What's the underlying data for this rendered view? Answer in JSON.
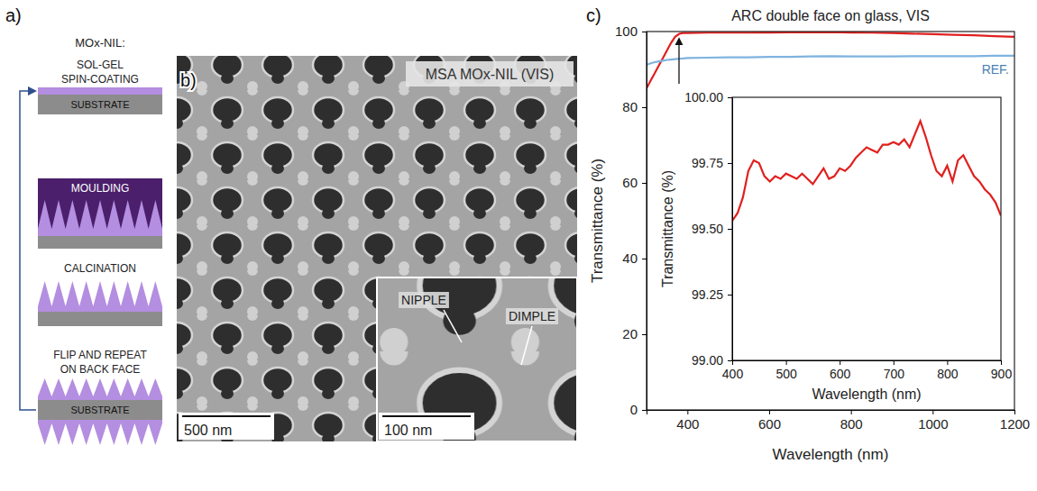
{
  "diagram": {
    "letter": "a)",
    "title": "MOx-NIL:",
    "steps": [
      {
        "lines": [
          "SOL-GEL",
          "SPIN-COATING"
        ],
        "substrate": "SUBSTRATE"
      },
      {
        "lines": [
          "MOULDING"
        ]
      },
      {
        "lines": [
          "CALCINATION"
        ]
      },
      {
        "lines": [
          "FLIP AND REPEAT",
          "ON BACK FACE"
        ],
        "substrate": "SUBSTRATE"
      }
    ]
  },
  "image": {
    "letter": "b)",
    "caption": "MSA MOx-NIL (VIS)",
    "scale_bar": "500 nm",
    "inset": {
      "scale_bar": "100 nm",
      "labels": [
        "NIPPLE",
        "DIMPLE"
      ]
    }
  },
  "chart_data": [
    {
      "type": "line",
      "panel_label": "c)",
      "title": "ARC double face on glass, VIS",
      "x_label": "Wavelength (nm)",
      "y_label": "Transmittance (%)",
      "x": [
        300,
        310,
        320,
        330,
        340,
        350,
        360,
        370,
        380,
        390,
        400,
        450,
        500,
        550,
        600,
        650,
        700,
        750,
        800,
        850,
        900,
        950,
        1000,
        1050,
        1100,
        1150,
        1200
      ],
      "series": [
        {
          "color": "#e0201e",
          "values": [
            85,
            87,
            89,
            91,
            93,
            95,
            97,
            98.6,
            99.4,
            99.6,
            99.6,
            99.7,
            99.7,
            99.7,
            99.75,
            99.8,
            99.8,
            99.85,
            99.75,
            99.7,
            99.6,
            99.45,
            99.3,
            99.15,
            99.0,
            98.8,
            98.6
          ]
        },
        {
          "name": "REF.",
          "color": "#7fb3e0",
          "values": [
            91.2,
            91.6,
            91.9,
            92.1,
            92.3,
            92.5,
            92.6,
            92.7,
            92.8,
            92.9,
            93.0,
            93.1,
            93.2,
            93.2,
            93.3,
            93.3,
            93.4,
            93.5,
            93.4,
            93.4,
            93.4,
            93.5,
            93.5,
            93.5,
            93.5,
            93.6,
            93.6
          ]
        }
      ],
      "xlim": [
        300,
        1200
      ],
      "xticks": [
        400,
        600,
        800,
        1000,
        1200
      ],
      "ylim": [
        0,
        100
      ],
      "yticks": [
        0,
        20,
        40,
        60,
        80,
        100
      ]
    },
    {
      "type": "line",
      "x_label": "Wavelength (nm)",
      "y_label": "Transmittance (%)",
      "x": [
        400,
        410,
        420,
        430,
        440,
        450,
        460,
        470,
        480,
        490,
        500,
        510,
        520,
        530,
        540,
        550,
        560,
        570,
        580,
        590,
        600,
        610,
        620,
        630,
        640,
        650,
        660,
        670,
        680,
        690,
        700,
        710,
        720,
        730,
        740,
        750,
        760,
        770,
        780,
        790,
        800,
        810,
        820,
        830,
        840,
        850,
        860,
        870,
        880,
        890,
        900
      ],
      "series": [
        {
          "color": "#e0201e",
          "values": [
            99.53,
            99.56,
            99.62,
            99.72,
            99.76,
            99.75,
            99.7,
            99.68,
            99.7,
            99.69,
            99.71,
            99.7,
            99.69,
            99.71,
            99.69,
            99.67,
            99.7,
            99.73,
            99.69,
            99.7,
            99.73,
            99.72,
            99.74,
            99.77,
            99.79,
            99.81,
            99.8,
            99.79,
            99.82,
            99.82,
            99.83,
            99.82,
            99.84,
            99.81,
            99.86,
            99.91,
            99.85,
            99.78,
            99.72,
            99.7,
            99.74,
            99.68,
            99.76,
            99.78,
            99.74,
            99.7,
            99.68,
            99.65,
            99.63,
            99.6,
            99.55
          ]
        }
      ],
      "xlim": [
        400,
        900
      ],
      "xticks": [
        400,
        500,
        600,
        700,
        800,
        900
      ],
      "ylim": [
        99,
        100
      ],
      "yticks": [
        {
          "value": 99,
          "label": "99.00"
        },
        99.25,
        {
          "value": 99.5,
          "label": "99.50"
        },
        99.75,
        {
          "value": 100,
          "label": "100.00"
        }
      ]
    }
  ]
}
